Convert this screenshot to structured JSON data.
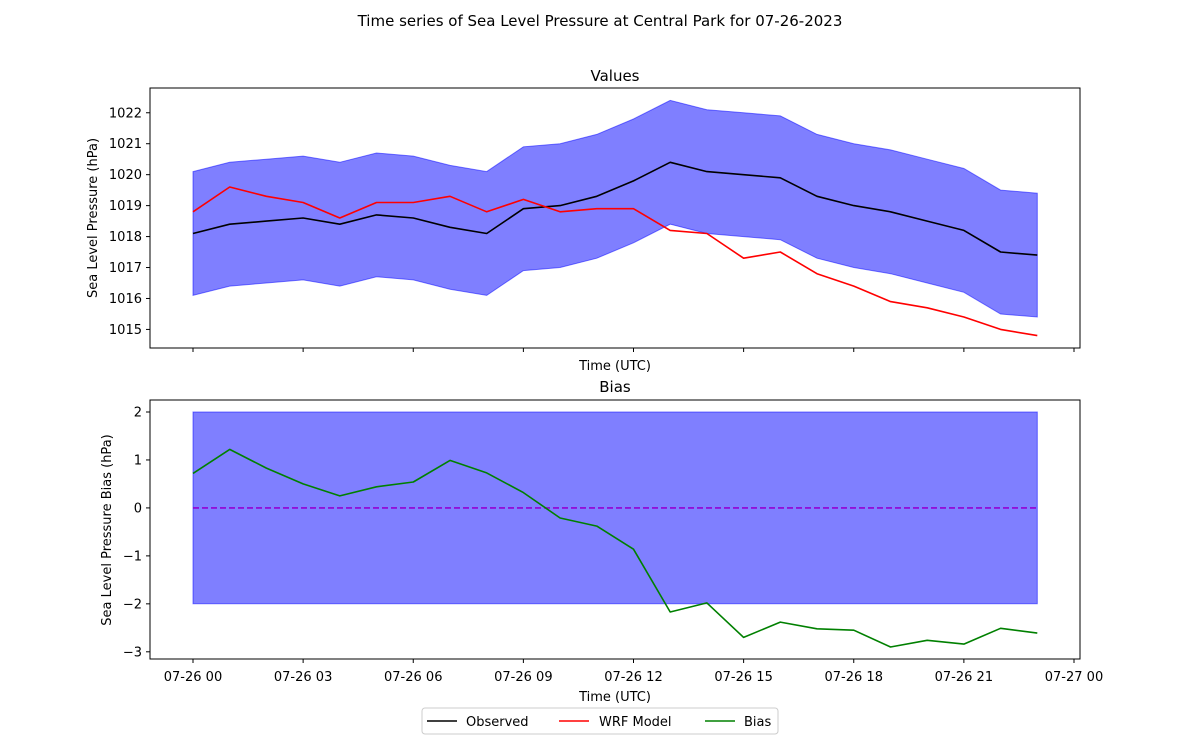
{
  "suptitle": "Time series of Sea Level Pressure at Central Park for 07-26-2023",
  "colors": {
    "observed": "#000000",
    "model": "#ff0000",
    "bias": "#008000",
    "band": "#0000ff",
    "zero_line": "#9400d3"
  },
  "x_tick_labels": [
    "07-26 00",
    "07-26 03",
    "07-26 06",
    "07-26 09",
    "07-26 12",
    "07-26 15",
    "07-26 18",
    "07-26 21",
    "07-27 00"
  ],
  "legend": {
    "placement": "bottom-center",
    "entries": [
      "Observed",
      "WRF Model",
      "Bias"
    ]
  },
  "chart_data": [
    {
      "type": "line",
      "title": "Values",
      "xlabel": "Time (UTC)",
      "ylabel": "Sea Level Pressure (hPa)",
      "ylim": [
        1014.4,
        1022.8
      ],
      "yticks": [
        1015,
        1016,
        1017,
        1018,
        1019,
        1020,
        1021,
        1022
      ],
      "x_hours": [
        0,
        1,
        2,
        3,
        4,
        5,
        6,
        7,
        8,
        9,
        10,
        11,
        12,
        13,
        14,
        15,
        16,
        17,
        18,
        19,
        20,
        21,
        22,
        23
      ],
      "series": [
        {
          "name": "Observed",
          "color_key": "observed",
          "values": [
            1018.1,
            1018.4,
            1018.5,
            1018.6,
            1018.4,
            1018.7,
            1018.6,
            1018.3,
            1018.1,
            1018.9,
            1019.0,
            1019.3,
            1019.8,
            1020.4,
            1020.1,
            1020.0,
            1019.9,
            1019.3,
            1019.0,
            1018.8,
            1018.5,
            1018.2,
            1017.5,
            1017.4
          ]
        },
        {
          "name": "WRF Model",
          "color_key": "model",
          "values": [
            1018.8,
            1019.6,
            1019.3,
            1019.1,
            1018.6,
            1019.1,
            1019.1,
            1019.3,
            1018.8,
            1019.2,
            1018.8,
            1018.9,
            1018.9,
            1018.2,
            1018.1,
            1017.3,
            1017.5,
            1016.8,
            1016.4,
            1015.9,
            1015.7,
            1015.4,
            1015.0,
            1014.8
          ]
        }
      ],
      "band": {
        "around": "Observed",
        "plus_minus": 2
      },
      "grid": false
    },
    {
      "type": "line",
      "title": "Bias",
      "xlabel": "Time (UTC)",
      "ylabel": "Sea Level Pressure Bias (hPa)",
      "ylim": [
        -3.15,
        2.25
      ],
      "yticks": [
        -3,
        -2,
        -1,
        0,
        1,
        2
      ],
      "x_hours": [
        0,
        1,
        2,
        3,
        4,
        5,
        6,
        7,
        8,
        9,
        10,
        11,
        12,
        13,
        14,
        15,
        16,
        17,
        18,
        19,
        20,
        21,
        22,
        23
      ],
      "series": [
        {
          "name": "Bias",
          "color_key": "bias",
          "values": [
            0.72,
            1.22,
            0.83,
            0.5,
            0.25,
            0.44,
            0.54,
            0.99,
            0.73,
            0.32,
            -0.21,
            -0.38,
            -0.86,
            -2.17,
            -1.98,
            -2.7,
            -2.38,
            -2.52,
            -2.55,
            -2.9,
            -2.76,
            -2.84,
            -2.51,
            -2.61
          ]
        }
      ],
      "band": {
        "lower": -2,
        "upper": 2
      },
      "zero_line": 0,
      "grid": false
    }
  ]
}
